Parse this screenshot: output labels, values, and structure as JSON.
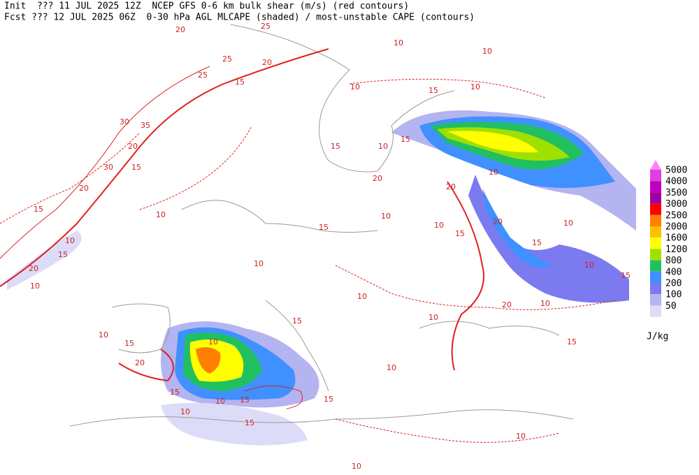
{
  "header": {
    "line1": "Init  ??? 11 JUL 2025 12Z  NCEP GFS 0-6 km bulk shear (m/s) (red contours)",
    "line2": "Fcst ??? 12 JUL 2025 06Z  0-30 hPa AGL MLCAPE (shaded) / most-unstable CAPE (contours)"
  },
  "legend": {
    "unit": "J/kg",
    "levels": [
      {
        "value": 5000,
        "color": "#e040e0"
      },
      {
        "value": 4000,
        "color": "#c000c0"
      },
      {
        "value": 3500,
        "color": "#a000a0"
      },
      {
        "value": 3000,
        "color": "#ff0000"
      },
      {
        "value": 2500,
        "color": "#ff8000"
      },
      {
        "value": 2000,
        "color": "#ffc000"
      },
      {
        "value": 1600,
        "color": "#ffff00"
      },
      {
        "value": 1200,
        "color": "#a0e000"
      },
      {
        "value": 800,
        "color": "#20c060"
      },
      {
        "value": 400,
        "color": "#4090ff"
      },
      {
        "value": 200,
        "color": "#7b7bef"
      },
      {
        "value": 100,
        "color": "#b4b4f0"
      },
      {
        "value": 50,
        "color": "#dcdcf8"
      }
    ]
  },
  "contour_labels": [
    "20",
    "25",
    "25",
    "25",
    "20",
    "15",
    "10",
    "10",
    "10",
    "10",
    "15",
    "30",
    "35",
    "20",
    "30",
    "15",
    "20",
    "15",
    "10",
    "10",
    "15",
    "20",
    "10",
    "15",
    "10",
    "15",
    "20",
    "10",
    "20",
    "20",
    "10",
    "15",
    "15",
    "10",
    "10",
    "15",
    "10",
    "10",
    "10",
    "15",
    "10",
    "20",
    "10",
    "15",
    "15",
    "10",
    "15",
    "15",
    "10",
    "15",
    "10",
    "20",
    "10",
    "15",
    "10",
    "10",
    "15",
    "10"
  ]
}
